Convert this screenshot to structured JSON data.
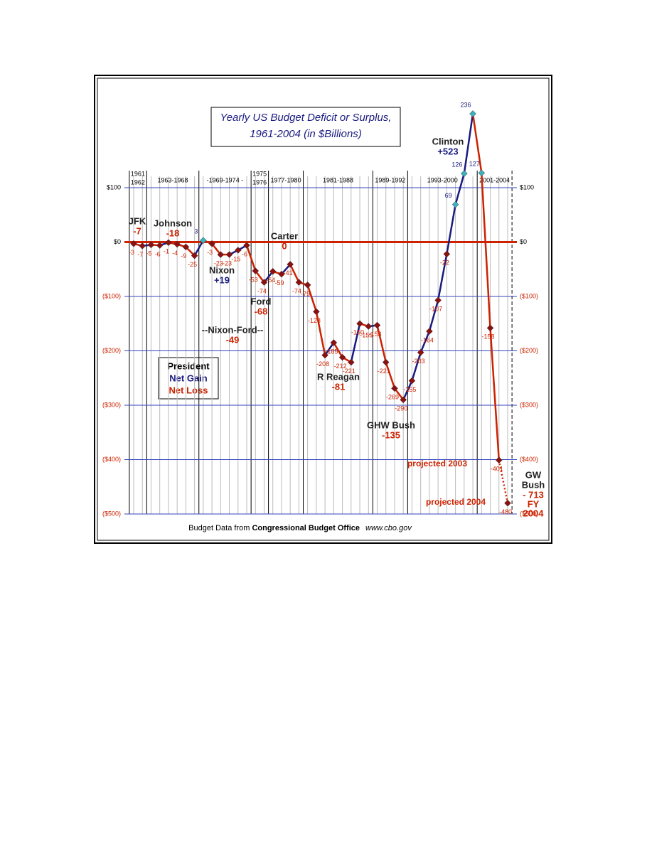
{
  "chart_data": {
    "type": "line",
    "title": "Yearly US Budget Deficit or Surplus,",
    "subtitle": "1961-2004 (in $Billions)",
    "x": [
      1961,
      1962,
      1963,
      1964,
      1965,
      1966,
      1967,
      1968,
      1969,
      1970,
      1971,
      1972,
      1973,
      1974,
      1975,
      1976,
      1977,
      1978,
      1979,
      1980,
      1981,
      1982,
      1983,
      1984,
      1985,
      1986,
      1987,
      1988,
      1989,
      1990,
      1991,
      1992,
      1993,
      1994,
      1995,
      1996,
      1997,
      1998,
      1999,
      2000,
      2001,
      2002,
      2003,
      2004
    ],
    "values": [
      -3,
      -7,
      -5,
      -6,
      -1,
      -4,
      -9,
      -25,
      3,
      -3,
      -23,
      -23,
      -15,
      -6,
      -53,
      -74,
      -54,
      -59,
      -41,
      -74,
      -79,
      -128,
      -208,
      -185,
      -212,
      -221,
      -150,
      -155,
      -153,
      -221,
      -269,
      -290,
      -255,
      -203,
      -164,
      -107,
      -22,
      69,
      126,
      236,
      127,
      -158,
      -401,
      -480
    ],
    "xlim": [
      1961,
      2004
    ],
    "ylim": [
      -500,
      100
    ],
    "yticks": [
      {
        "value": 100,
        "label": "$100"
      },
      {
        "value": 0,
        "label": "$0"
      },
      {
        "value": -100,
        "label": "($100)"
      },
      {
        "value": -200,
        "label": "($200)"
      },
      {
        "value": -300,
        "label": "($300)"
      },
      {
        "value": -400,
        "label": "($400)"
      },
      {
        "value": -500,
        "label": "($500)"
      }
    ],
    "grid": true,
    "gain_color": "#1a1a80",
    "loss_color": "#cc2200",
    "point_color": "#8b1010",
    "surplus_point_color": "#3fb0c0",
    "dotted_from": 2003,
    "terms": [
      {
        "labels": [
          "1961",
          "1962"
        ],
        "from": 1961,
        "to": 1962
      },
      {
        "labels": [
          "1963-1968"
        ],
        "from": 1963,
        "to": 1968
      },
      {
        "labels": [
          "-1969-1974 -"
        ],
        "from": 1969,
        "to": 1974
      },
      {
        "labels": [
          "1975",
          "1976"
        ],
        "from": 1975,
        "to": 1976
      },
      {
        "labels": [
          "1977-1980"
        ],
        "from": 1977,
        "to": 1980
      },
      {
        "labels": [
          "1981-1988"
        ],
        "from": 1981,
        "to": 1988
      },
      {
        "labels": [
          "1989-1992"
        ],
        "from": 1989,
        "to": 1992
      },
      {
        "labels": [
          "1993-2000"
        ],
        "from": 1993,
        "to": 2000
      },
      {
        "labels": [
          "2001-2004"
        ],
        "from": 2001,
        "to": 2004
      }
    ],
    "presidents": [
      {
        "name": [
          "JFK"
        ],
        "net": [
          "-7"
        ],
        "kind": "loss"
      },
      {
        "name": [
          "Johnson"
        ],
        "net": [
          "-18"
        ],
        "kind": "loss"
      },
      {
        "name": [
          "Nixon"
        ],
        "net": [
          "+19"
        ],
        "kind": "gain"
      },
      {
        "name": [
          "Ford"
        ],
        "net": [
          "-68"
        ],
        "kind": "loss"
      },
      {
        "name": [
          "--Nixon-Ford--"
        ],
        "net": [
          "-49"
        ],
        "kind": "loss"
      },
      {
        "name": [
          "Carter"
        ],
        "net": [
          "0"
        ],
        "kind": "loss"
      },
      {
        "name": [
          "R Reagan"
        ],
        "net": [
          "-81"
        ],
        "kind": "loss"
      },
      {
        "name": [
          "GHW Bush"
        ],
        "net": [
          "-135"
        ],
        "kind": "loss"
      },
      {
        "name": [
          "Clinton"
        ],
        "net": [
          "+523"
        ],
        "kind": "gain"
      },
      {
        "name": [
          "GW",
          "Bush"
        ],
        "net": [
          "- 713",
          "FY",
          "2004"
        ],
        "kind": "loss"
      }
    ],
    "projections": [
      "projected 2003",
      "projected 2004"
    ],
    "legend": {
      "title": "President",
      "gain": "Net Gain",
      "loss": "Net Loss"
    },
    "footer": {
      "prefix": "Budget Data from ",
      "source": "Congressional Budget Office",
      "url": "www.cbo.gov"
    }
  }
}
